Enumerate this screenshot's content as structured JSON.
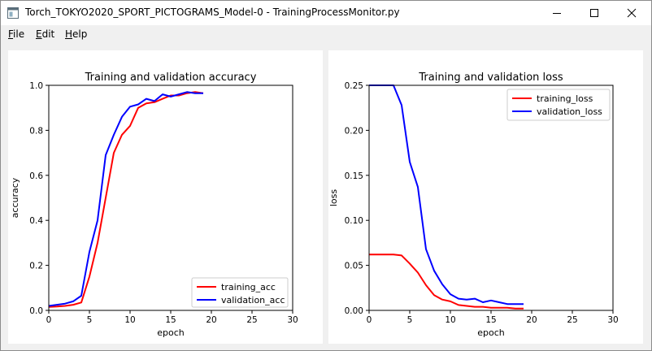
{
  "window": {
    "title": "Torch_TOKYO2020_SPORT_PICTOGRAMS_Model-0 - TrainingProcessMonitor.py",
    "icon": "window-icon",
    "controls": [
      "minimize-icon",
      "maximize-icon",
      "close-icon"
    ]
  },
  "menu": {
    "items": [
      {
        "label": "File",
        "mnemonic": "F",
        "rest": "ile"
      },
      {
        "label": "Edit",
        "mnemonic": "E",
        "rest": "dit"
      },
      {
        "label": "Help",
        "mnemonic": "H",
        "rest": "elp"
      }
    ]
  },
  "chart_data": [
    {
      "type": "line",
      "title": "Training and validation accuracy",
      "xlabel": "epoch",
      "ylabel": "accuracy",
      "xlim": [
        0,
        30
      ],
      "ylim": [
        0,
        1.0
      ],
      "x_ticks": [
        "0",
        "5",
        "10",
        "15",
        "20",
        "25",
        "30"
      ],
      "y_ticks": [
        "0.0",
        "0.2",
        "0.4",
        "0.6",
        "0.8",
        "1.0"
      ],
      "legend_position": "lower-right",
      "grid": false,
      "series": [
        {
          "name": "training_acc",
          "color": "#ff0000",
          "x": [
            0,
            1,
            2,
            3,
            4,
            5,
            6,
            7,
            8,
            9,
            10,
            11,
            12,
            13,
            14,
            15,
            16,
            17,
            18,
            19
          ],
          "y": [
            0.015,
            0.017,
            0.02,
            0.025,
            0.035,
            0.15,
            0.3,
            0.5,
            0.7,
            0.78,
            0.82,
            0.9,
            0.92,
            0.925,
            0.94,
            0.955,
            0.955,
            0.965,
            0.97,
            0.965
          ]
        },
        {
          "name": "validation_acc",
          "color": "#0000ff",
          "x": [
            0,
            1,
            2,
            3,
            4,
            5,
            6,
            7,
            8,
            9,
            10,
            11,
            12,
            13,
            14,
            15,
            16,
            17,
            18,
            19
          ],
          "y": [
            0.02,
            0.025,
            0.03,
            0.04,
            0.065,
            0.26,
            0.4,
            0.69,
            0.78,
            0.86,
            0.905,
            0.915,
            0.94,
            0.93,
            0.96,
            0.95,
            0.96,
            0.97,
            0.965,
            0.965
          ]
        }
      ]
    },
    {
      "type": "line",
      "title": "Training and validation loss",
      "xlabel": "epoch",
      "ylabel": "loss",
      "xlim": [
        0,
        30
      ],
      "ylim": [
        0,
        0.25
      ],
      "x_ticks": [
        "0",
        "5",
        "10",
        "15",
        "20",
        "25",
        "30"
      ],
      "y_ticks": [
        "0.00",
        "0.05",
        "0.10",
        "0.15",
        "0.20",
        "0.25"
      ],
      "legend_position": "upper-right",
      "grid": false,
      "series": [
        {
          "name": "training_loss",
          "color": "#ff0000",
          "x": [
            0,
            1,
            2,
            3,
            4,
            5,
            6,
            7,
            8,
            9,
            10,
            11,
            12,
            13,
            14,
            15,
            16,
            17,
            18,
            19
          ],
          "y": [
            0.062,
            0.062,
            0.062,
            0.062,
            0.061,
            0.052,
            0.042,
            0.028,
            0.017,
            0.012,
            0.01,
            0.006,
            0.005,
            0.004,
            0.004,
            0.003,
            0.003,
            0.003,
            0.002,
            0.002
          ]
        },
        {
          "name": "validation_loss",
          "color": "#0000ff",
          "x": [
            0,
            1,
            2,
            3,
            4,
            5,
            6,
            7,
            8,
            9,
            10,
            11,
            12,
            13,
            14,
            15,
            16,
            17,
            18,
            19
          ],
          "y": [
            0.25,
            0.25,
            0.25,
            0.25,
            0.228,
            0.165,
            0.137,
            0.068,
            0.044,
            0.029,
            0.018,
            0.013,
            0.012,
            0.013,
            0.009,
            0.011,
            0.009,
            0.007,
            0.007,
            0.007
          ]
        }
      ]
    }
  ]
}
